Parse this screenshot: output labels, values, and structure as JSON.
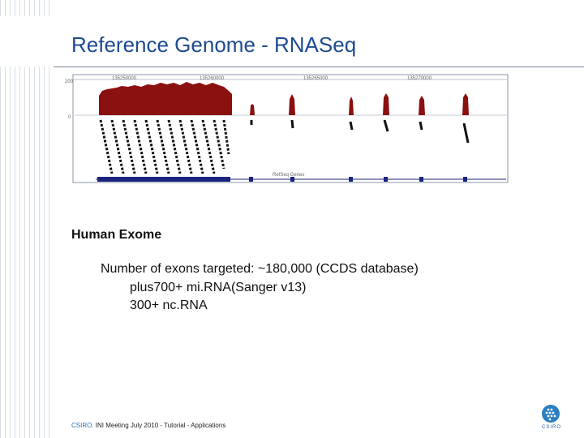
{
  "slide": {
    "title": "Reference Genome - RNASeq",
    "heading": "Human Exome",
    "lines": [
      "Number of exons targeted: ~180,000 (CCDS database)",
      "plus700+ mi.RNA(Sanger v13)",
      "300+ nc.RNA"
    ],
    "footer_brand": "CSIRO.",
    "footer_text": "INI Meeting July 2010 - Tutorial - Applications",
    "logo_text": "CSIRO"
  },
  "figure": {
    "y_ticks": [
      "200",
      "0"
    ],
    "x_ticks": [
      "135250000",
      "135260000",
      "135265000",
      "135270000"
    ],
    "track_label": "RefSeq Genes",
    "colors": {
      "coverage": "#8b1010",
      "read": "#111111",
      "gene": "#1a237e",
      "frame": "#8896a8"
    }
  }
}
